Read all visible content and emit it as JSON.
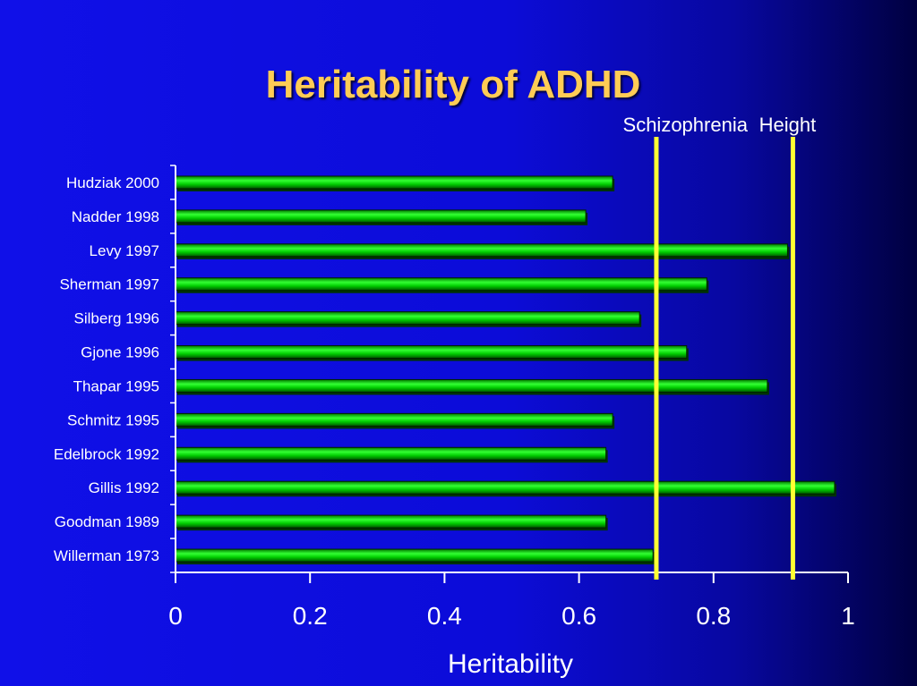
{
  "chart_data": {
    "type": "bar",
    "orientation": "horizontal",
    "title": "Heritability of ADHD",
    "xlabel": "Heritability",
    "ylabel": "",
    "xlim": [
      0,
      1
    ],
    "ticks": [
      "0",
      "0.2",
      "0.4",
      "0.6",
      "0.8",
      "1"
    ],
    "tick_values": [
      0,
      0.2,
      0.4,
      0.6,
      0.8,
      1
    ],
    "categories": [
      "Hudziak 2000",
      "Nadder 1998",
      "Levy 1997",
      "Sherman 1997",
      "Silberg 1996",
      "Gjone 1996",
      "Thapar 1995",
      "Schmitz 1995",
      "Edelbrock 1992",
      "Gillis 1992",
      "Goodman 1989",
      "Willerman 1973"
    ],
    "values": [
      0.65,
      0.61,
      0.91,
      0.79,
      0.69,
      0.76,
      0.88,
      0.65,
      0.64,
      0.98,
      0.64,
      0.71
    ],
    "reference_lines": [
      {
        "label": "Schizophrenia",
        "value": 0.715
      },
      {
        "label": "Height",
        "value": 0.918
      }
    ],
    "grid": false,
    "colors": {
      "bar": "#00cc00",
      "bar_highlight": "#66ff66",
      "bar_shadow": "#003300",
      "reference_line": "#ffff33",
      "title": "#ffcc55",
      "background": "#1010e8"
    }
  }
}
